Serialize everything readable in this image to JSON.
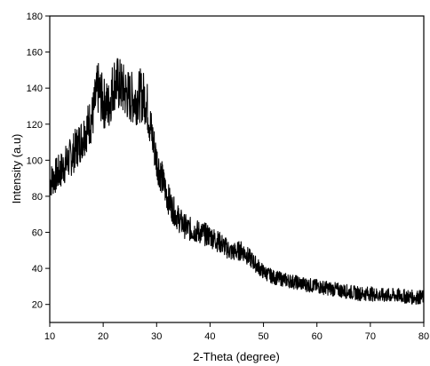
{
  "chart_data": {
    "type": "line",
    "xlabel": "2-Theta (degree)",
    "ylabel": "Intensity (a.u)",
    "xlim": [
      10,
      80
    ],
    "ylim": [
      10,
      180
    ],
    "x_ticks": [
      10,
      20,
      30,
      40,
      50,
      60,
      70,
      80
    ],
    "y_ticks": [
      20,
      40,
      60,
      80,
      100,
      120,
      140,
      160,
      180
    ],
    "grid": false,
    "line_color": "#000000",
    "series": [
      {
        "x": [
          10,
          12,
          14,
          16,
          17,
          18,
          19,
          20,
          21,
          22,
          23,
          24,
          25,
          26,
          27,
          28,
          29,
          30,
          31,
          32,
          33,
          34,
          35,
          36,
          37,
          38,
          40,
          42,
          44,
          46,
          48,
          50,
          52,
          55,
          58,
          60,
          62,
          64,
          66,
          68,
          70,
          72,
          75,
          78,
          80
        ],
        "y": [
          88,
          94,
          102,
          112,
          118,
          124,
          140,
          132,
          130,
          143,
          142,
          138,
          135,
          134,
          136,
          134,
          116,
          100,
          90,
          80,
          73,
          68,
          64,
          62,
          61,
          60,
          58,
          54,
          49,
          50,
          44,
          38,
          35,
          33,
          31,
          30,
          29,
          28,
          27,
          26,
          26,
          25,
          25,
          24,
          24
        ]
      }
    ]
  }
}
